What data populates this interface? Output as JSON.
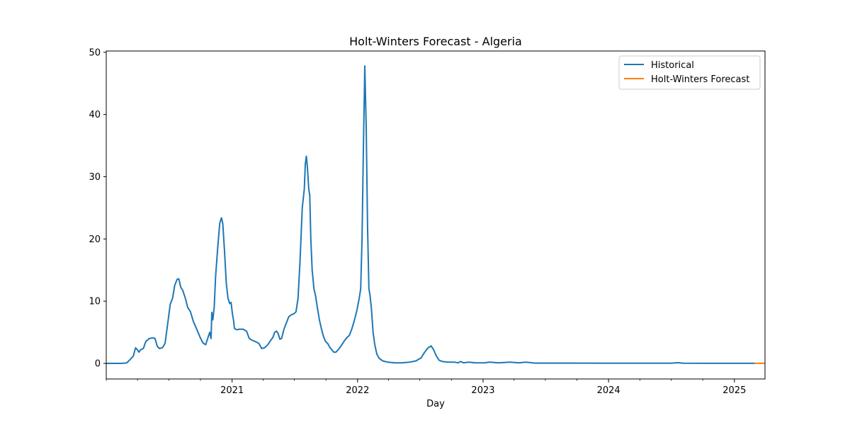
{
  "chart_data": {
    "type": "line",
    "title": "Holt-Winters Forecast - Algeria",
    "xlabel": "Day",
    "ylabel": "",
    "xlim": [
      "2020-01-01",
      "2025-03-31"
    ],
    "ylim": [
      -2.5,
      50.2
    ],
    "x_ticks": [
      "2021",
      "2022",
      "2023",
      "2024",
      "2025"
    ],
    "y_ticks": [
      0,
      10,
      20,
      30,
      40,
      50
    ],
    "legend_position": "top-right",
    "grid": false,
    "series": [
      {
        "name": "Historical",
        "color": "#1f77b4",
        "points": [
          [
            "2020-01-01",
            0
          ],
          [
            "2020-02-15",
            0
          ],
          [
            "2020-03-01",
            0.1
          ],
          [
            "2020-03-10",
            0.6
          ],
          [
            "2020-03-20",
            1.2
          ],
          [
            "2020-03-26",
            2.5
          ],
          [
            "2020-03-30",
            2.3
          ],
          [
            "2020-04-05",
            1.8
          ],
          [
            "2020-04-10",
            2.2
          ],
          [
            "2020-04-18",
            2.4
          ],
          [
            "2020-04-25",
            3.5
          ],
          [
            "2020-05-05",
            4.0
          ],
          [
            "2020-05-15",
            4.1
          ],
          [
            "2020-05-22",
            4.0
          ],
          [
            "2020-05-28",
            2.8
          ],
          [
            "2020-06-03",
            2.4
          ],
          [
            "2020-06-12",
            2.5
          ],
          [
            "2020-06-20",
            3.2
          ],
          [
            "2020-06-28",
            6.5
          ],
          [
            "2020-07-05",
            9.5
          ],
          [
            "2020-07-12",
            10.5
          ],
          [
            "2020-07-18",
            12.5
          ],
          [
            "2020-07-25",
            13.5
          ],
          [
            "2020-07-30",
            13.6
          ],
          [
            "2020-08-05",
            12.2
          ],
          [
            "2020-08-10",
            11.8
          ],
          [
            "2020-08-18",
            10.5
          ],
          [
            "2020-08-25",
            9.0
          ],
          [
            "2020-09-02",
            8.3
          ],
          [
            "2020-09-10",
            6.8
          ],
          [
            "2020-09-20",
            5.5
          ],
          [
            "2020-09-30",
            4.2
          ],
          [
            "2020-10-08",
            3.3
          ],
          [
            "2020-10-16",
            3.0
          ],
          [
            "2020-10-22",
            4.0
          ],
          [
            "2020-10-28",
            5.0
          ],
          [
            "2020-11-01",
            4.0
          ],
          [
            "2020-11-03",
            8.2
          ],
          [
            "2020-11-06",
            7.0
          ],
          [
            "2020-11-10",
            9.0
          ],
          [
            "2020-11-14",
            14.0
          ],
          [
            "2020-11-20",
            18.5
          ],
          [
            "2020-11-26",
            22.5
          ],
          [
            "2020-12-01",
            23.4
          ],
          [
            "2020-12-05",
            22.5
          ],
          [
            "2020-12-10",
            18.0
          ],
          [
            "2020-12-15",
            13.0
          ],
          [
            "2020-12-20",
            10.5
          ],
          [
            "2020-12-25",
            9.6
          ],
          [
            "2020-12-29",
            9.8
          ],
          [
            "2021-01-02",
            8.0
          ],
          [
            "2021-01-05",
            7.0
          ],
          [
            "2021-01-08",
            5.6
          ],
          [
            "2021-01-15",
            5.4
          ],
          [
            "2021-01-22",
            5.5
          ],
          [
            "2021-02-01",
            5.5
          ],
          [
            "2021-02-12",
            5.2
          ],
          [
            "2021-02-20",
            4.0
          ],
          [
            "2021-03-01",
            3.7
          ],
          [
            "2021-03-10",
            3.5
          ],
          [
            "2021-03-20",
            3.2
          ],
          [
            "2021-03-28",
            2.4
          ],
          [
            "2021-04-05",
            2.5
          ],
          [
            "2021-04-15",
            3.0
          ],
          [
            "2021-04-22",
            3.6
          ],
          [
            "2021-04-30",
            4.2
          ],
          [
            "2021-05-05",
            5.0
          ],
          [
            "2021-05-10",
            5.2
          ],
          [
            "2021-05-15",
            4.8
          ],
          [
            "2021-05-20",
            3.9
          ],
          [
            "2021-05-25",
            4.0
          ],
          [
            "2021-06-01",
            5.5
          ],
          [
            "2021-06-08",
            6.5
          ],
          [
            "2021-06-15",
            7.5
          ],
          [
            "2021-06-22",
            7.8
          ],
          [
            "2021-06-30",
            8.0
          ],
          [
            "2021-07-06",
            8.3
          ],
          [
            "2021-07-12",
            10.5
          ],
          [
            "2021-07-18",
            17.0
          ],
          [
            "2021-07-24",
            25.0
          ],
          [
            "2021-07-30",
            28.0
          ],
          [
            "2021-08-02",
            32.0
          ],
          [
            "2021-08-05",
            33.3
          ],
          [
            "2021-08-08",
            31.5
          ],
          [
            "2021-08-12",
            28.0
          ],
          [
            "2021-08-15",
            27.0
          ],
          [
            "2021-08-18",
            20.0
          ],
          [
            "2021-08-22",
            15.0
          ],
          [
            "2021-08-27",
            12.0
          ],
          [
            "2021-09-01",
            10.8
          ],
          [
            "2021-09-06",
            9.0
          ],
          [
            "2021-09-12",
            7.0
          ],
          [
            "2021-09-18",
            5.5
          ],
          [
            "2021-09-24",
            4.3
          ],
          [
            "2021-09-30",
            3.5
          ],
          [
            "2021-10-06",
            3.2
          ],
          [
            "2021-10-12",
            2.6
          ],
          [
            "2021-10-18",
            2.2
          ],
          [
            "2021-10-24",
            1.8
          ],
          [
            "2021-10-30",
            1.8
          ],
          [
            "2021-11-06",
            2.2
          ],
          [
            "2021-11-14",
            2.8
          ],
          [
            "2021-11-22",
            3.5
          ],
          [
            "2021-11-30",
            4.1
          ],
          [
            "2021-12-08",
            4.5
          ],
          [
            "2021-12-15",
            5.5
          ],
          [
            "2021-12-22",
            6.8
          ],
          [
            "2021-12-30",
            8.5
          ],
          [
            "2022-01-06",
            10.5
          ],
          [
            "2022-01-10",
            12.0
          ],
          [
            "2022-01-14",
            20.0
          ],
          [
            "2022-01-18",
            35.0
          ],
          [
            "2022-01-22",
            47.8
          ],
          [
            "2022-01-26",
            38.0
          ],
          [
            "2022-01-30",
            22.0
          ],
          [
            "2022-02-03",
            12.0
          ],
          [
            "2022-02-06",
            11.0
          ],
          [
            "2022-02-10",
            9.0
          ],
          [
            "2022-02-15",
            5.0
          ],
          [
            "2022-02-20",
            3.0
          ],
          [
            "2022-02-26",
            1.5
          ],
          [
            "2022-03-05",
            0.8
          ],
          [
            "2022-03-15",
            0.4
          ],
          [
            "2022-03-30",
            0.2
          ],
          [
            "2022-04-20",
            0.1
          ],
          [
            "2022-05-10",
            0.1
          ],
          [
            "2022-06-01",
            0.2
          ],
          [
            "2022-06-20",
            0.4
          ],
          [
            "2022-07-05",
            0.9
          ],
          [
            "2022-07-15",
            1.8
          ],
          [
            "2022-07-25",
            2.5
          ],
          [
            "2022-08-03",
            2.8
          ],
          [
            "2022-08-10",
            2.2
          ],
          [
            "2022-08-18",
            1.2
          ],
          [
            "2022-08-26",
            0.5
          ],
          [
            "2022-09-05",
            0.3
          ],
          [
            "2022-09-20",
            0.2
          ],
          [
            "2022-10-10",
            0.2
          ],
          [
            "2022-10-20",
            0.1
          ],
          [
            "2022-10-28",
            0.3
          ],
          [
            "2022-11-05",
            0.1
          ],
          [
            "2022-11-20",
            0.2
          ],
          [
            "2022-12-10",
            0.1
          ],
          [
            "2023-01-05",
            0.1
          ],
          [
            "2023-01-20",
            0.2
          ],
          [
            "2023-02-15",
            0.1
          ],
          [
            "2023-03-20",
            0.2
          ],
          [
            "2023-04-15",
            0.1
          ],
          [
            "2023-05-05",
            0.2
          ],
          [
            "2023-06-01",
            0.05
          ],
          [
            "2023-08-01",
            0.05
          ],
          [
            "2023-10-01",
            0.05
          ],
          [
            "2024-01-01",
            0.03
          ],
          [
            "2024-04-01",
            0.03
          ],
          [
            "2024-07-01",
            0.03
          ],
          [
            "2024-07-20",
            0.12
          ],
          [
            "2024-08-05",
            0.03
          ],
          [
            "2024-11-01",
            0.02
          ],
          [
            "2025-01-01",
            0.02
          ],
          [
            "2025-03-01",
            0.02
          ]
        ]
      },
      {
        "name": "Holt-Winters Forecast",
        "color": "#ff7f0e",
        "points": [
          [
            "2025-03-01",
            0.02
          ],
          [
            "2025-03-31",
            0.02
          ]
        ]
      }
    ]
  }
}
